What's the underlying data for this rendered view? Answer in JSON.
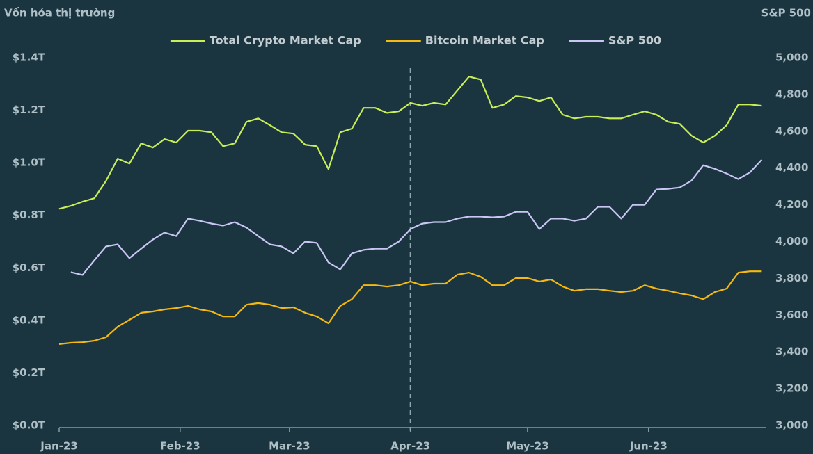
{
  "chart_data": {
    "type": "line",
    "title": "Vốn hóa thị trường",
    "y2_title": "S&P 500",
    "x": [
      0,
      3,
      6,
      9,
      12,
      15,
      18,
      21,
      24,
      27,
      30,
      33,
      36,
      39,
      42,
      45,
      48,
      51,
      54,
      57,
      60,
      63,
      66,
      69,
      72,
      75,
      78,
      81,
      84,
      87,
      90,
      93,
      96,
      99,
      102,
      105,
      108,
      111,
      114,
      117,
      120,
      123,
      126,
      129,
      132,
      135,
      138,
      141,
      144,
      147,
      150,
      153,
      156,
      159,
      162,
      165,
      168,
      171,
      174,
      177,
      180
    ],
    "xlim": [
      0,
      181
    ],
    "xticks": [
      {
        "value": 0,
        "label": "Jan-23"
      },
      {
        "value": 31,
        "label": "Feb-23"
      },
      {
        "value": 59,
        "label": "Mar-23"
      },
      {
        "value": 90,
        "label": "Apr-23"
      },
      {
        "value": 120,
        "label": "May-23"
      },
      {
        "value": 151,
        "label": "Jun-23"
      }
    ],
    "ylim": [
      0,
      1.4
    ],
    "yticks": [
      {
        "value": 0,
        "label": "$0.0T"
      },
      {
        "value": 0.2,
        "label": "$0.2T"
      },
      {
        "value": 0.4,
        "label": "$0.4T"
      },
      {
        "value": 0.6,
        "label": "$0.6T"
      },
      {
        "value": 0.8,
        "label": "$0.8T"
      },
      {
        "value": 1.0,
        "label": "$1.0T"
      },
      {
        "value": 1.2,
        "label": "$1.2T"
      },
      {
        "value": 1.4,
        "label": "$1.4T"
      }
    ],
    "y2lim": [
      3000,
      5000
    ],
    "y2ticks": [
      {
        "value": 3000,
        "label": "3,000"
      },
      {
        "value": 3200,
        "label": "3,200"
      },
      {
        "value": 3400,
        "label": "3,400"
      },
      {
        "value": 3600,
        "label": "3,600"
      },
      {
        "value": 3800,
        "label": "3,800"
      },
      {
        "value": 4000,
        "label": "4,000"
      },
      {
        "value": 4200,
        "label": "4,200"
      },
      {
        "value": 4400,
        "label": "4,400"
      },
      {
        "value": 4600,
        "label": "4,600"
      },
      {
        "value": 4800,
        "label": "4,800"
      },
      {
        "value": 5000,
        "label": "5,000"
      }
    ],
    "grid": false,
    "legend": "top",
    "series": [
      {
        "name": "Total Crypto Market Cap",
        "color": "#c8ef55",
        "values": [
          0.825,
          0.836,
          0.852,
          0.865,
          0.931,
          1.016,
          0.997,
          1.074,
          1.058,
          1.09,
          1.077,
          1.122,
          1.122,
          1.116,
          1.063,
          1.074,
          1.156,
          1.169,
          1.143,
          1.116,
          1.111,
          1.069,
          1.063,
          0.976,
          1.116,
          1.13,
          1.209,
          1.209,
          1.19,
          1.196,
          1.228,
          1.217,
          1.228,
          1.222,
          1.275,
          1.328,
          1.317,
          1.209,
          1.222,
          1.254,
          1.249,
          1.235,
          1.249,
          1.183,
          1.169,
          1.175,
          1.175,
          1.169,
          1.169,
          1.183,
          1.196,
          1.183,
          1.156,
          1.148,
          1.103,
          1.077,
          1.103,
          1.143,
          1.222,
          1.222,
          1.217
        ]
      },
      {
        "name": "Bitcoin Market Cap",
        "color": "#f5b90f",
        "values": [
          0.31,
          0.315,
          0.317,
          0.323,
          0.336,
          0.376,
          0.402,
          0.429,
          0.434,
          0.442,
          0.447,
          0.455,
          0.442,
          0.434,
          0.415,
          0.415,
          0.46,
          0.466,
          0.46,
          0.447,
          0.45,
          0.429,
          0.415,
          0.389,
          0.455,
          0.481,
          0.534,
          0.534,
          0.529,
          0.534,
          0.548,
          0.534,
          0.54,
          0.54,
          0.574,
          0.582,
          0.566,
          0.534,
          0.534,
          0.561,
          0.561,
          0.548,
          0.556,
          0.529,
          0.513,
          0.519,
          0.519,
          0.513,
          0.508,
          0.513,
          0.534,
          0.521,
          0.513,
          0.503,
          0.495,
          0.481,
          0.508,
          0.521,
          0.582,
          0.587,
          0.587
        ]
      },
      {
        "name": "S&P 500",
        "color": "#c9c6f4",
        "axis": "y2",
        "values": [
          null,
          3834,
          3819,
          3898,
          3974,
          3985,
          3910,
          3962,
          4011,
          4049,
          4030,
          4125,
          4113,
          4098,
          4087,
          4106,
          4076,
          4030,
          3985,
          3974,
          3936,
          4000,
          3993,
          3887,
          3849,
          3936,
          3955,
          3962,
          3962,
          4000,
          4068,
          4098,
          4106,
          4106,
          4125,
          4136,
          4136,
          4132,
          4136,
          4162,
          4162,
          4068,
          4125,
          4125,
          4113,
          4125,
          4189,
          4189,
          4125,
          4200,
          4200,
          4283,
          4287,
          4294,
          4332,
          4415,
          4396,
          4370,
          4340,
          4377,
          4445
        ]
      }
    ]
  }
}
